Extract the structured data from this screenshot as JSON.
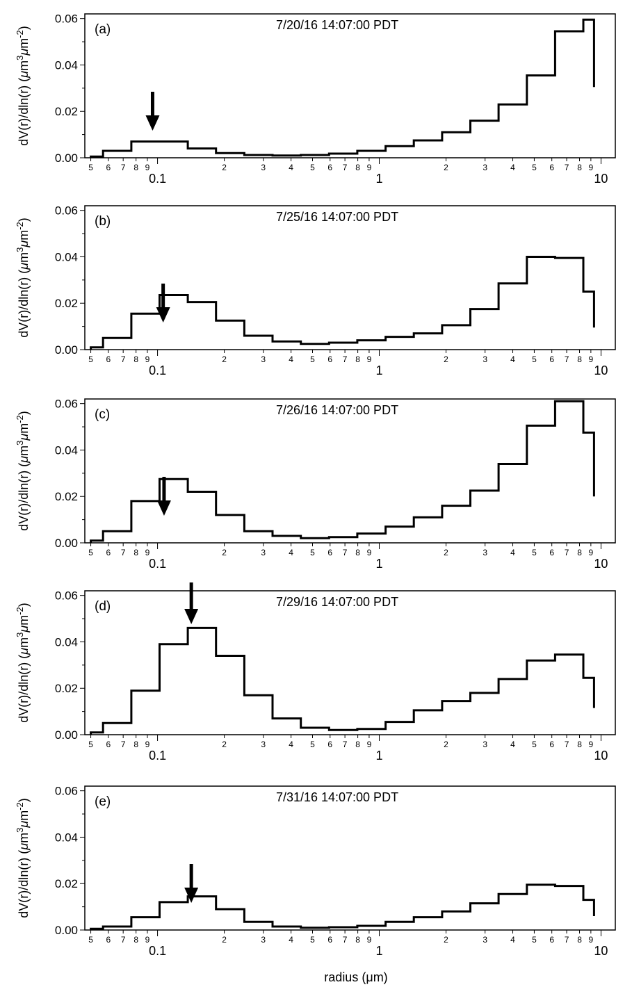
{
  "figure": {
    "ylabel_main": "dV(r)/dln(r) (",
    "ylabel_mu": "μ",
    "ylabel_m1": "m",
    "ylabel_sup1": "3",
    "ylabel_m2": "m",
    "ylabel_sup2": "-2",
    "ylabel_close": ")",
    "xlabel": "radius (μm)"
  },
  "chart_data": [
    {
      "type": "line",
      "panel_label": "(a)",
      "title": "7/20/16 14:07:00 PDT",
      "x_scale": "log",
      "xlim": [
        0.047,
        11.6
      ],
      "ylim": [
        0,
        0.062
      ],
      "yticks": [
        "0.00",
        "0.02",
        "0.04",
        "0.06"
      ],
      "xticks_major": [
        "0.1",
        "1",
        "10"
      ],
      "xticks_minor": [
        "5",
        "6",
        "7",
        "8",
        "9",
        "2",
        "3",
        "4",
        "5",
        "6",
        "7",
        "8",
        "9",
        "2",
        "3",
        "4",
        "5",
        "6",
        "7",
        "8",
        "9"
      ],
      "bin_edges": [
        0.05,
        0.0568,
        0.0762,
        0.1021,
        0.1369,
        0.1836,
        0.2463,
        0.3302,
        0.4428,
        0.5937,
        0.7962,
        1.0677,
        1.4317,
        1.9199,
        2.5745,
        3.4522,
        4.6292,
        6.2075,
        8.3238,
        9.3
      ],
      "values": [
        0.0005,
        0.003,
        0.007,
        0.007,
        0.004,
        0.002,
        0.0012,
        0.001,
        0.0012,
        0.0018,
        0.003,
        0.005,
        0.0075,
        0.011,
        0.016,
        0.023,
        0.0355,
        0.0545,
        0.0595,
        0.0305
      ],
      "arrow_radius": 0.095
    },
    {
      "type": "line",
      "panel_label": "(b)",
      "title": "7/25/16 14:07:00 PDT",
      "x_scale": "log",
      "xlim": [
        0.047,
        11.6
      ],
      "ylim": [
        0,
        0.062
      ],
      "yticks": [
        "0.00",
        "0.02",
        "0.04",
        "0.06"
      ],
      "xticks_major": [
        "0.1",
        "1",
        "10"
      ],
      "xticks_minor": [
        "5",
        "6",
        "7",
        "8",
        "9",
        "2",
        "3",
        "4",
        "5",
        "6",
        "7",
        "8",
        "9",
        "2",
        "3",
        "4",
        "5",
        "6",
        "7",
        "8",
        "9"
      ],
      "bin_edges": [
        0.05,
        0.0568,
        0.0762,
        0.1021,
        0.1369,
        0.1836,
        0.2463,
        0.3302,
        0.4428,
        0.5937,
        0.7962,
        1.0677,
        1.4317,
        1.9199,
        2.5745,
        3.4522,
        4.6292,
        6.2075,
        8.3238,
        9.3
      ],
      "values": [
        0.001,
        0.005,
        0.0155,
        0.0235,
        0.0205,
        0.0125,
        0.006,
        0.0035,
        0.0025,
        0.003,
        0.004,
        0.0055,
        0.007,
        0.0105,
        0.0175,
        0.0285,
        0.04,
        0.0395,
        0.025,
        0.0095
      ],
      "arrow_radius": 0.106
    },
    {
      "type": "line",
      "panel_label": "(c)",
      "title": "7/26/16 14:07:00 PDT",
      "x_scale": "log",
      "xlim": [
        0.047,
        11.6
      ],
      "ylim": [
        0,
        0.062
      ],
      "yticks": [
        "0.00",
        "0.02",
        "0.04",
        "0.06"
      ],
      "xticks_major": [
        "0.1",
        "1",
        "10"
      ],
      "xticks_minor": [
        "5",
        "6",
        "7",
        "8",
        "9",
        "2",
        "3",
        "4",
        "5",
        "6",
        "7",
        "8",
        "9",
        "2",
        "3",
        "4",
        "5",
        "6",
        "7",
        "8",
        "9"
      ],
      "bin_edges": [
        0.05,
        0.0568,
        0.0762,
        0.1021,
        0.1369,
        0.1836,
        0.2463,
        0.3302,
        0.4428,
        0.5937,
        0.7962,
        1.0677,
        1.4317,
        1.9199,
        2.5745,
        3.4522,
        4.6292,
        6.2075,
        8.3238,
        9.3
      ],
      "values": [
        0.001,
        0.005,
        0.018,
        0.0275,
        0.022,
        0.012,
        0.005,
        0.003,
        0.002,
        0.0025,
        0.004,
        0.007,
        0.011,
        0.016,
        0.0225,
        0.034,
        0.0505,
        0.061,
        0.0475,
        0.02
      ],
      "arrow_radius": 0.107
    },
    {
      "type": "line",
      "panel_label": "(d)",
      "title": "7/29/16 14:07:00 PDT",
      "x_scale": "log",
      "xlim": [
        0.047,
        11.6
      ],
      "ylim": [
        0,
        0.062
      ],
      "yticks": [
        "0.00",
        "0.02",
        "0.04",
        "0.06"
      ],
      "xticks_major": [
        "0.1",
        "1",
        "10"
      ],
      "xticks_minor": [
        "5",
        "6",
        "7",
        "8",
        "9",
        "2",
        "3",
        "4",
        "5",
        "6",
        "7",
        "8",
        "9",
        "2",
        "3",
        "4",
        "5",
        "6",
        "7",
        "8",
        "9"
      ],
      "bin_edges": [
        0.05,
        0.0568,
        0.0762,
        0.1021,
        0.1369,
        0.1836,
        0.2463,
        0.3302,
        0.4428,
        0.5937,
        0.7962,
        1.0677,
        1.4317,
        1.9199,
        2.5745,
        3.4522,
        4.6292,
        6.2075,
        8.3238,
        9.3
      ],
      "values": [
        0.001,
        0.005,
        0.019,
        0.039,
        0.046,
        0.034,
        0.017,
        0.007,
        0.003,
        0.002,
        0.0025,
        0.0055,
        0.0105,
        0.0145,
        0.018,
        0.024,
        0.032,
        0.0345,
        0.0245,
        0.0115
      ],
      "arrow_radius": 0.142
    },
    {
      "type": "line",
      "panel_label": "(e)",
      "title": "7/31/16 14:07:00 PDT",
      "x_scale": "log",
      "xlim": [
        0.047,
        11.6
      ],
      "ylim": [
        0,
        0.062
      ],
      "yticks": [
        "0.00",
        "0.02",
        "0.04",
        "0.06"
      ],
      "xticks_major": [
        "0.1",
        "1",
        "10"
      ],
      "xticks_minor": [
        "5",
        "6",
        "7",
        "8",
        "9",
        "2",
        "3",
        "4",
        "5",
        "6",
        "7",
        "8",
        "9",
        "2",
        "3",
        "4",
        "5",
        "6",
        "7",
        "8",
        "9"
      ],
      "bin_edges": [
        0.05,
        0.0568,
        0.0762,
        0.1021,
        0.1369,
        0.1836,
        0.2463,
        0.3302,
        0.4428,
        0.5937,
        0.7962,
        1.0677,
        1.4317,
        1.9199,
        2.5745,
        3.4522,
        4.6292,
        6.2075,
        8.3238,
        9.3
      ],
      "values": [
        0.0005,
        0.0015,
        0.0055,
        0.012,
        0.0145,
        0.009,
        0.0035,
        0.0015,
        0.001,
        0.0012,
        0.0018,
        0.0035,
        0.0055,
        0.008,
        0.0115,
        0.0155,
        0.0195,
        0.019,
        0.013,
        0.006
      ],
      "arrow_radius": 0.142
    }
  ]
}
